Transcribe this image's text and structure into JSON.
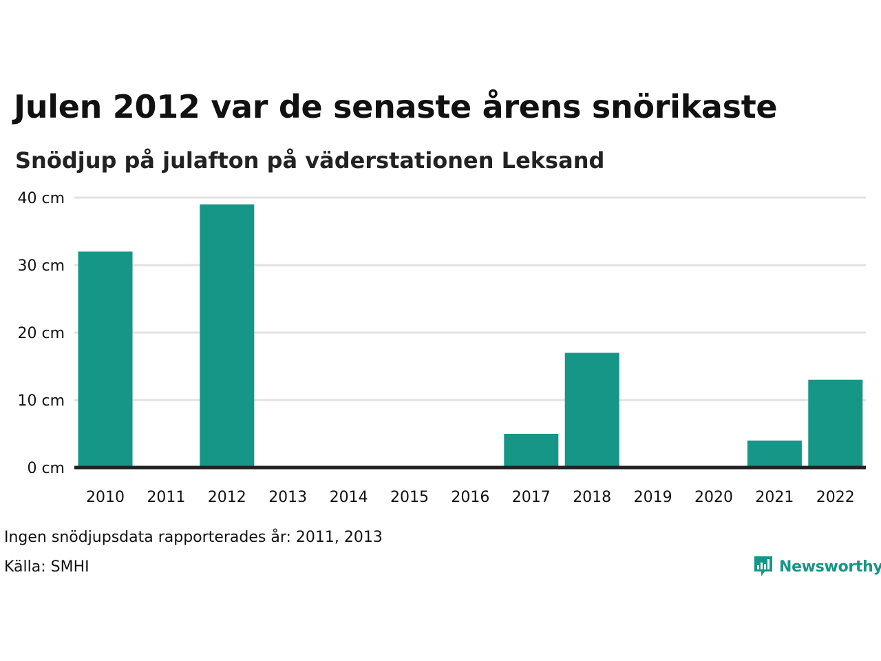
{
  "header": {
    "title": "Julen 2012 var de senaste årens snörikaste",
    "subtitle": "Snödjup på julafton på väderstationen Leksand"
  },
  "footer": {
    "missing_note": "Ingen snödjupsdata rapporterades år: 2011, 2013",
    "source": "Källa: SMHI",
    "logo_text": "Newsworthy"
  },
  "colors": {
    "bar": "#159686",
    "grid": "#e2e2e2",
    "baseline": "#222222",
    "logo": "#159686"
  },
  "icons": {
    "logo": "newsworthy-logo-icon"
  },
  "chart_data": {
    "type": "bar",
    "title": "Julen 2012 var de senaste årens snörikaste",
    "subtitle": "Snödjup på julafton på väderstationen Leksand",
    "categories": [
      "2010",
      "2011",
      "2012",
      "2013",
      "2014",
      "2015",
      "2016",
      "2017",
      "2018",
      "2019",
      "2020",
      "2021",
      "2022"
    ],
    "values": [
      32,
      null,
      39,
      null,
      0,
      0,
      0,
      5,
      17,
      0,
      0,
      4,
      13
    ],
    "ylim": [
      0,
      40
    ],
    "yticks": [
      0,
      10,
      20,
      30,
      40
    ],
    "ytick_labels": [
      "0 cm",
      "10 cm",
      "20 cm",
      "30 cm",
      "40 cm"
    ],
    "xlabel": "",
    "ylabel": "",
    "grid": true,
    "legend": "none"
  }
}
